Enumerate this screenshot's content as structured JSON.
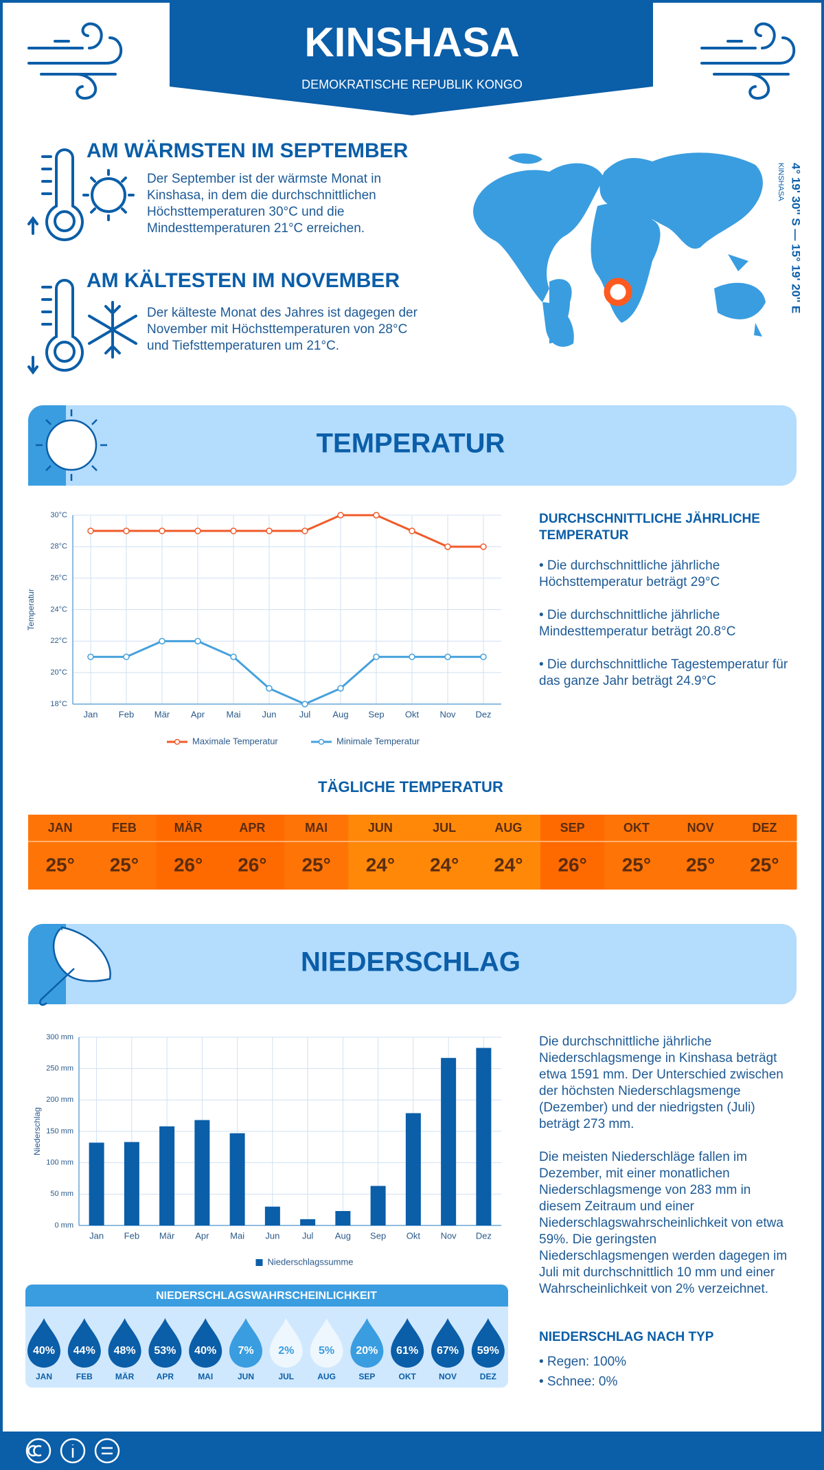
{
  "header": {
    "title": "KINSHASA",
    "subtitle": "DEMOKRATISCHE REPUBLIK KONGO"
  },
  "location": {
    "coordinates": "4° 19' 30'' S — 15° 19' 20'' E",
    "name": "KINSHASA"
  },
  "highlights": [
    {
      "title": "AM WÄRMSTEN IM SEPTEMBER",
      "text": "Der September ist der wärmste Monat in Kinshasa, in dem die durchschnittlichen Höchsttemperaturen 30°C und die Mindesttemperaturen 21°C erreichen."
    },
    {
      "title": "AM KÄLTESTEN IM NOVEMBER",
      "text": "Der kälteste Monat des Jahres ist dagegen der November mit Höchsttemperaturen von 28°C und Tiefsttemperaturen um 21°C."
    }
  ],
  "temperature": {
    "section_title": "TEMPERATUR",
    "summary": {
      "title": "DURCHSCHNITTLICHE JÄHRLICHE TEMPERATUR",
      "items": [
        "• Die durchschnittliche jährliche Höchsttemperatur beträgt 29°C",
        "• Die durchschnittliche jährliche Mindesttemperatur beträgt 20.8°C",
        "• Die durchschnittliche Tagestemperatur für das ganze Jahr beträgt 24.9°C"
      ]
    },
    "daily": {
      "title": "TÄGLICHE TEMPERATUR",
      "months": [
        "JAN",
        "FEB",
        "MÄR",
        "APR",
        "MAI",
        "JUN",
        "JUL",
        "AUG",
        "SEP",
        "OKT",
        "NOV",
        "DEZ"
      ],
      "values": [
        25,
        25,
        26,
        26,
        25,
        24,
        24,
        24,
        26,
        25,
        25,
        25
      ],
      "value_labels": [
        "25°",
        "25°",
        "26°",
        "26°",
        "25°",
        "24°",
        "24°",
        "24°",
        "26°",
        "25°",
        "25°",
        "25°"
      ]
    }
  },
  "precipitation": {
    "section_title": "NIEDERSCHLAG",
    "paragraphs": [
      "Die durchschnittliche jährliche Niederschlagsmenge in Kinshasa beträgt etwa 1591 mm. Der Unterschied zwischen der höchsten Niederschlagsmenge (Dezember) und der niedrigsten (Juli) beträgt 273 mm.",
      "Die meisten Niederschläge fallen im Dezember, mit einer monatlichen Niederschlagsmenge von 283 mm in diesem Zeitraum und einer Niederschlagswahrscheinlichkeit von etwa 59%. Die geringsten Niederschlagsmengen werden dagegen im Juli mit durchschnittlich 10 mm und einer Wahrscheinlichkeit von 2% verzeichnet."
    ],
    "by_type": {
      "title": "NIEDERSCHLAG NACH TYP",
      "items": [
        "• Regen: 100%",
        "• Schnee: 0%"
      ]
    },
    "probability": {
      "title": "NIEDERSCHLAGSWAHRSCHEINLICHKEIT",
      "months": [
        "JAN",
        "FEB",
        "MÄR",
        "APR",
        "MAI",
        "JUN",
        "JUL",
        "AUG",
        "SEP",
        "OKT",
        "NOV",
        "DEZ"
      ],
      "values": [
        40,
        44,
        48,
        53,
        40,
        7,
        2,
        5,
        20,
        61,
        67,
        59
      ],
      "value_labels": [
        "40%",
        "44%",
        "48%",
        "53%",
        "40%",
        "7%",
        "2%",
        "5%",
        "20%",
        "61%",
        "67%",
        "59%"
      ]
    }
  },
  "chart_data": [
    {
      "type": "line",
      "y_label": "Temperatur",
      "categories": [
        "Jan",
        "Feb",
        "Mär",
        "Apr",
        "Mai",
        "Jun",
        "Jul",
        "Aug",
        "Sep",
        "Okt",
        "Nov",
        "Dez"
      ],
      "series": [
        {
          "name": "Maximale Temperatur",
          "color": "#f05a28",
          "values": [
            29,
            29,
            29,
            29,
            29,
            29,
            29,
            30,
            30,
            29,
            28,
            28
          ]
        },
        {
          "name": "Minimale Temperatur",
          "color": "#45a0dc",
          "values": [
            21,
            21,
            22,
            22,
            21,
            19,
            18,
            19,
            21,
            21,
            21,
            21
          ]
        }
      ],
      "ylim": [
        18,
        30
      ],
      "yticks": [
        {
          "value": 18,
          "label": "18°C"
        },
        {
          "value": 20,
          "label": "20°C"
        },
        {
          "value": 22,
          "label": "22°C"
        },
        {
          "value": 24,
          "label": "24°C"
        },
        {
          "value": 26,
          "label": "26°C"
        },
        {
          "value": 28,
          "label": "28°C"
        },
        {
          "value": 30,
          "label": "30°C"
        }
      ],
      "grid": true,
      "legend": "bottom"
    },
    {
      "type": "bar",
      "y_label": "Niederschlag",
      "categories": [
        "Jan",
        "Feb",
        "Mär",
        "Apr",
        "Mai",
        "Jun",
        "Jul",
        "Aug",
        "Sep",
        "Okt",
        "Nov",
        "Dez"
      ],
      "series": [
        {
          "name": "Niederschlagssumme",
          "color": "#0b5ea8",
          "values": [
            132,
            133,
            158,
            168,
            147,
            30,
            10,
            23,
            63,
            179,
            267,
            283
          ]
        }
      ],
      "ylim": [
        0,
        300
      ],
      "yticks": [
        {
          "value": 0,
          "label": "0 mm"
        },
        {
          "value": 50,
          "label": "50 mm"
        },
        {
          "value": 100,
          "label": "100 mm"
        },
        {
          "value": 150,
          "label": "150 mm"
        },
        {
          "value": 200,
          "label": "200 mm"
        },
        {
          "value": 250,
          "label": "250 mm"
        },
        {
          "value": 300,
          "label": "300 mm"
        }
      ],
      "grid": true,
      "legend": "bottom"
    }
  ]
}
